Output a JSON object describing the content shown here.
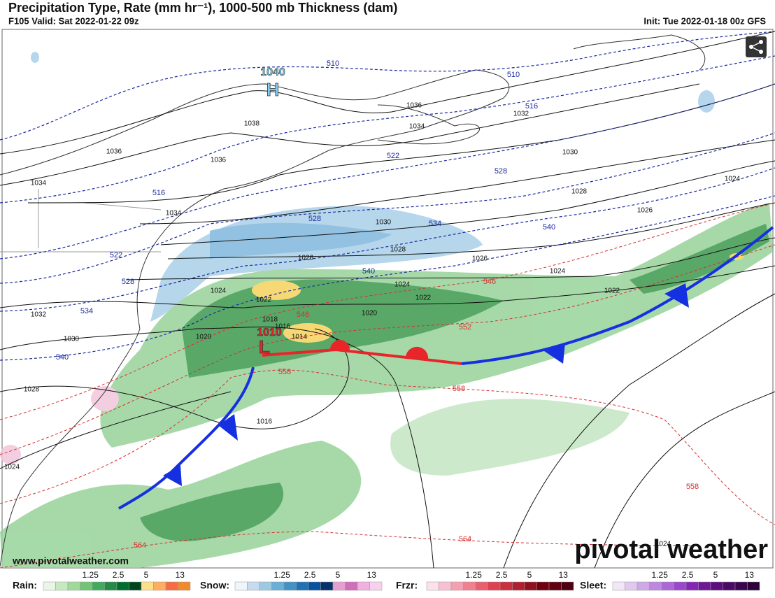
{
  "header": {
    "title": "Precipitation Type, Rate (mm hr⁻¹), 1000-500 mb Thickness (dam)",
    "valid": "F105 Valid: Sat 2022-01-22 09z",
    "init": "Init: Tue 2022-01-18 00z GFS"
  },
  "pressure_centers": [
    {
      "value": 1040,
      "label": "H"
    },
    {
      "value": 1010,
      "label": "L"
    }
  ],
  "isobar_labels": [
    1036,
    1034,
    1038,
    1036,
    1034,
    1036,
    1034,
    1032,
    1030,
    1028,
    1026,
    1024,
    1030,
    1028,
    1026,
    1026,
    1024,
    1024,
    1022,
    1022,
    1024,
    1022,
    1020,
    1018,
    1016,
    1014,
    1020,
    1032,
    1030,
    1028,
    1016,
    1024,
    1024
  ],
  "thickness_labels_blue": [
    510,
    510,
    516,
    522,
    528,
    516,
    528,
    534,
    540,
    522,
    528,
    540,
    534,
    540
  ],
  "thickness_labels_red": [
    546,
    552,
    546,
    558,
    558,
    558,
    564,
    564
  ],
  "legend": [
    {
      "name": "Rain:",
      "ticks": [
        1.25,
        2.5,
        5,
        13
      ]
    },
    {
      "name": "Snow:",
      "ticks": [
        1.25,
        2.5,
        5,
        13
      ]
    },
    {
      "name": "Frzr:",
      "ticks": [
        1.25,
        2.5,
        5,
        13
      ]
    },
    {
      "name": "Sleet:",
      "ticks": [
        1.25,
        2.5,
        5,
        13
      ]
    }
  ],
  "watermark": "www.pivotalweather.com",
  "logo": "pivotal weather"
}
